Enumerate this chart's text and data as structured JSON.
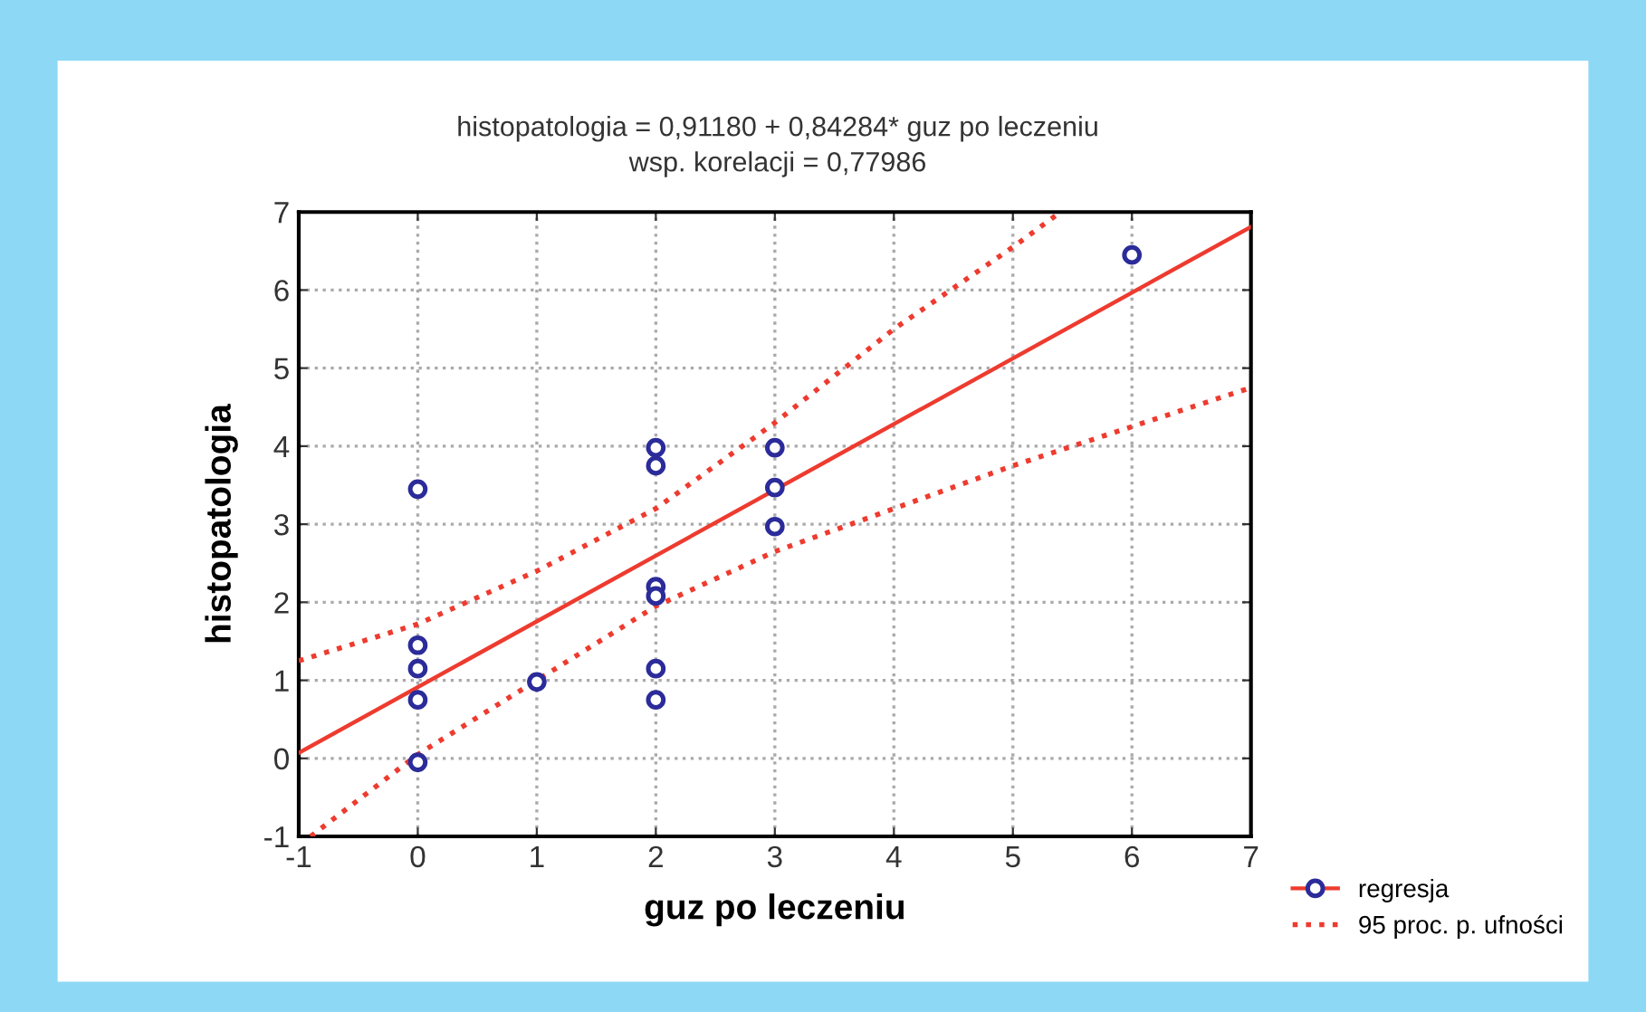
{
  "chart_data": {
    "type": "scatter",
    "title": "histopatologia = 0,91180 + 0,84284* guz po leczeniu",
    "subtitle": "wsp. korelacji = 0,77986",
    "xlabel": "guz po leczeniu",
    "ylabel": "histopatologia",
    "xlim": [
      -1,
      7
    ],
    "xticks": [
      -1,
      0,
      1,
      2,
      3,
      4,
      5,
      6,
      7
    ],
    "ylim": [
      -1,
      7
    ],
    "yticks": [
      -1,
      0,
      1,
      2,
      3,
      4,
      5,
      6,
      7
    ],
    "grid": true,
    "legend": "bottom right",
    "marker": "circle",
    "series": [
      {
        "color": "#2b2b9a",
        "x": [
          0,
          0,
          0,
          0,
          0,
          1,
          2,
          2,
          2,
          2,
          2,
          2,
          3,
          3,
          3,
          6
        ],
        "values": [
          3.45,
          1.45,
          1.15,
          0.75,
          -0.05,
          0.98,
          3.98,
          3.75,
          2.2,
          2.08,
          1.15,
          0.75,
          3.98,
          3.47,
          2.97,
          6.45
        ]
      },
      {
        "type": "line",
        "name": "regresja",
        "color": "#ee3b2f",
        "line_style": "solid",
        "marker": "none",
        "x": [
          -1,
          7
        ],
        "values": [
          0.07,
          6.81
        ]
      },
      {
        "type": "line",
        "name": "95 proc. p. ufności",
        "color": "#ee3b2f",
        "line_style": "dotted",
        "marker": "none",
        "x": [
          -1,
          0,
          1,
          2,
          3,
          4,
          5,
          5.4
        ],
        "values": [
          1.25,
          1.72,
          2.4,
          3.2,
          4.3,
          5.5,
          6.55,
          7
        ]
      },
      {
        "type": "line",
        "color": "#ee3b2f",
        "line_style": "dotted",
        "marker": "none",
        "x": [
          -0.9,
          0,
          1,
          2,
          3,
          4,
          5,
          6,
          7
        ],
        "values": [
          -1,
          0.05,
          1.0,
          1.95,
          2.65,
          3.2,
          3.75,
          4.25,
          4.75
        ]
      }
    ]
  }
}
